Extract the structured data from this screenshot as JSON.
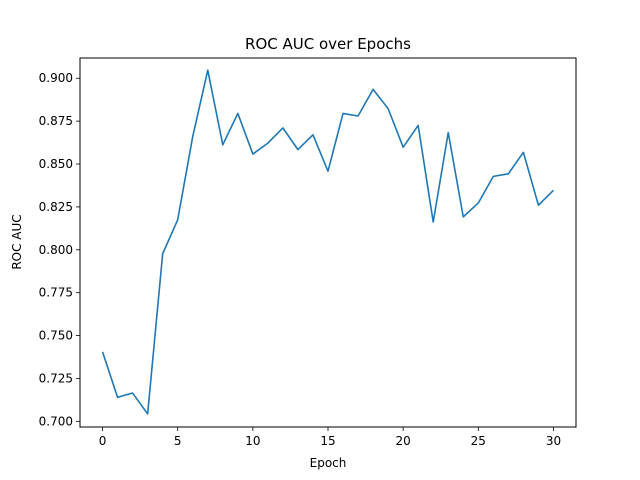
{
  "chart_data": {
    "type": "line",
    "title": "ROC AUC over Epochs",
    "xlabel": "Epoch",
    "ylabel": "ROC AUC",
    "xlim": [
      -1.5,
      31.5
    ],
    "ylim": [
      0.6967,
      0.9118
    ],
    "x_ticks": [
      0,
      5,
      10,
      15,
      20,
      25,
      30
    ],
    "y_ticks": [
      0.7,
      0.725,
      0.75,
      0.775,
      0.8,
      0.825,
      0.85,
      0.875,
      0.9
    ],
    "x_tick_labels": [
      "0",
      "5",
      "10",
      "15",
      "20",
      "25",
      "30"
    ],
    "y_tick_labels": [
      "0.700",
      "0.725",
      "0.750",
      "0.775",
      "0.800",
      "0.825",
      "0.850",
      "0.875",
      "0.900"
    ],
    "grid": false,
    "series": [
      {
        "color": "#1f77b4",
        "x": [
          0,
          1,
          2,
          3,
          4,
          5,
          6,
          7,
          8,
          9,
          10,
          11,
          12,
          13,
          14,
          15,
          16,
          17,
          18,
          19,
          20,
          21,
          22,
          23,
          24,
          25,
          26,
          27,
          28,
          29,
          30
        ],
        "y": [
          0.7405,
          0.714,
          0.7165,
          0.7043,
          0.7977,
          0.8175,
          0.866,
          0.9047,
          0.8612,
          0.8795,
          0.8558,
          0.8622,
          0.871,
          0.8584,
          0.867,
          0.8458,
          0.8795,
          0.878,
          0.8935,
          0.8823,
          0.8598,
          0.8725,
          0.8162,
          0.8683,
          0.8192,
          0.8273,
          0.8428,
          0.8443,
          0.8568,
          0.826,
          0.8347
        ]
      }
    ]
  }
}
